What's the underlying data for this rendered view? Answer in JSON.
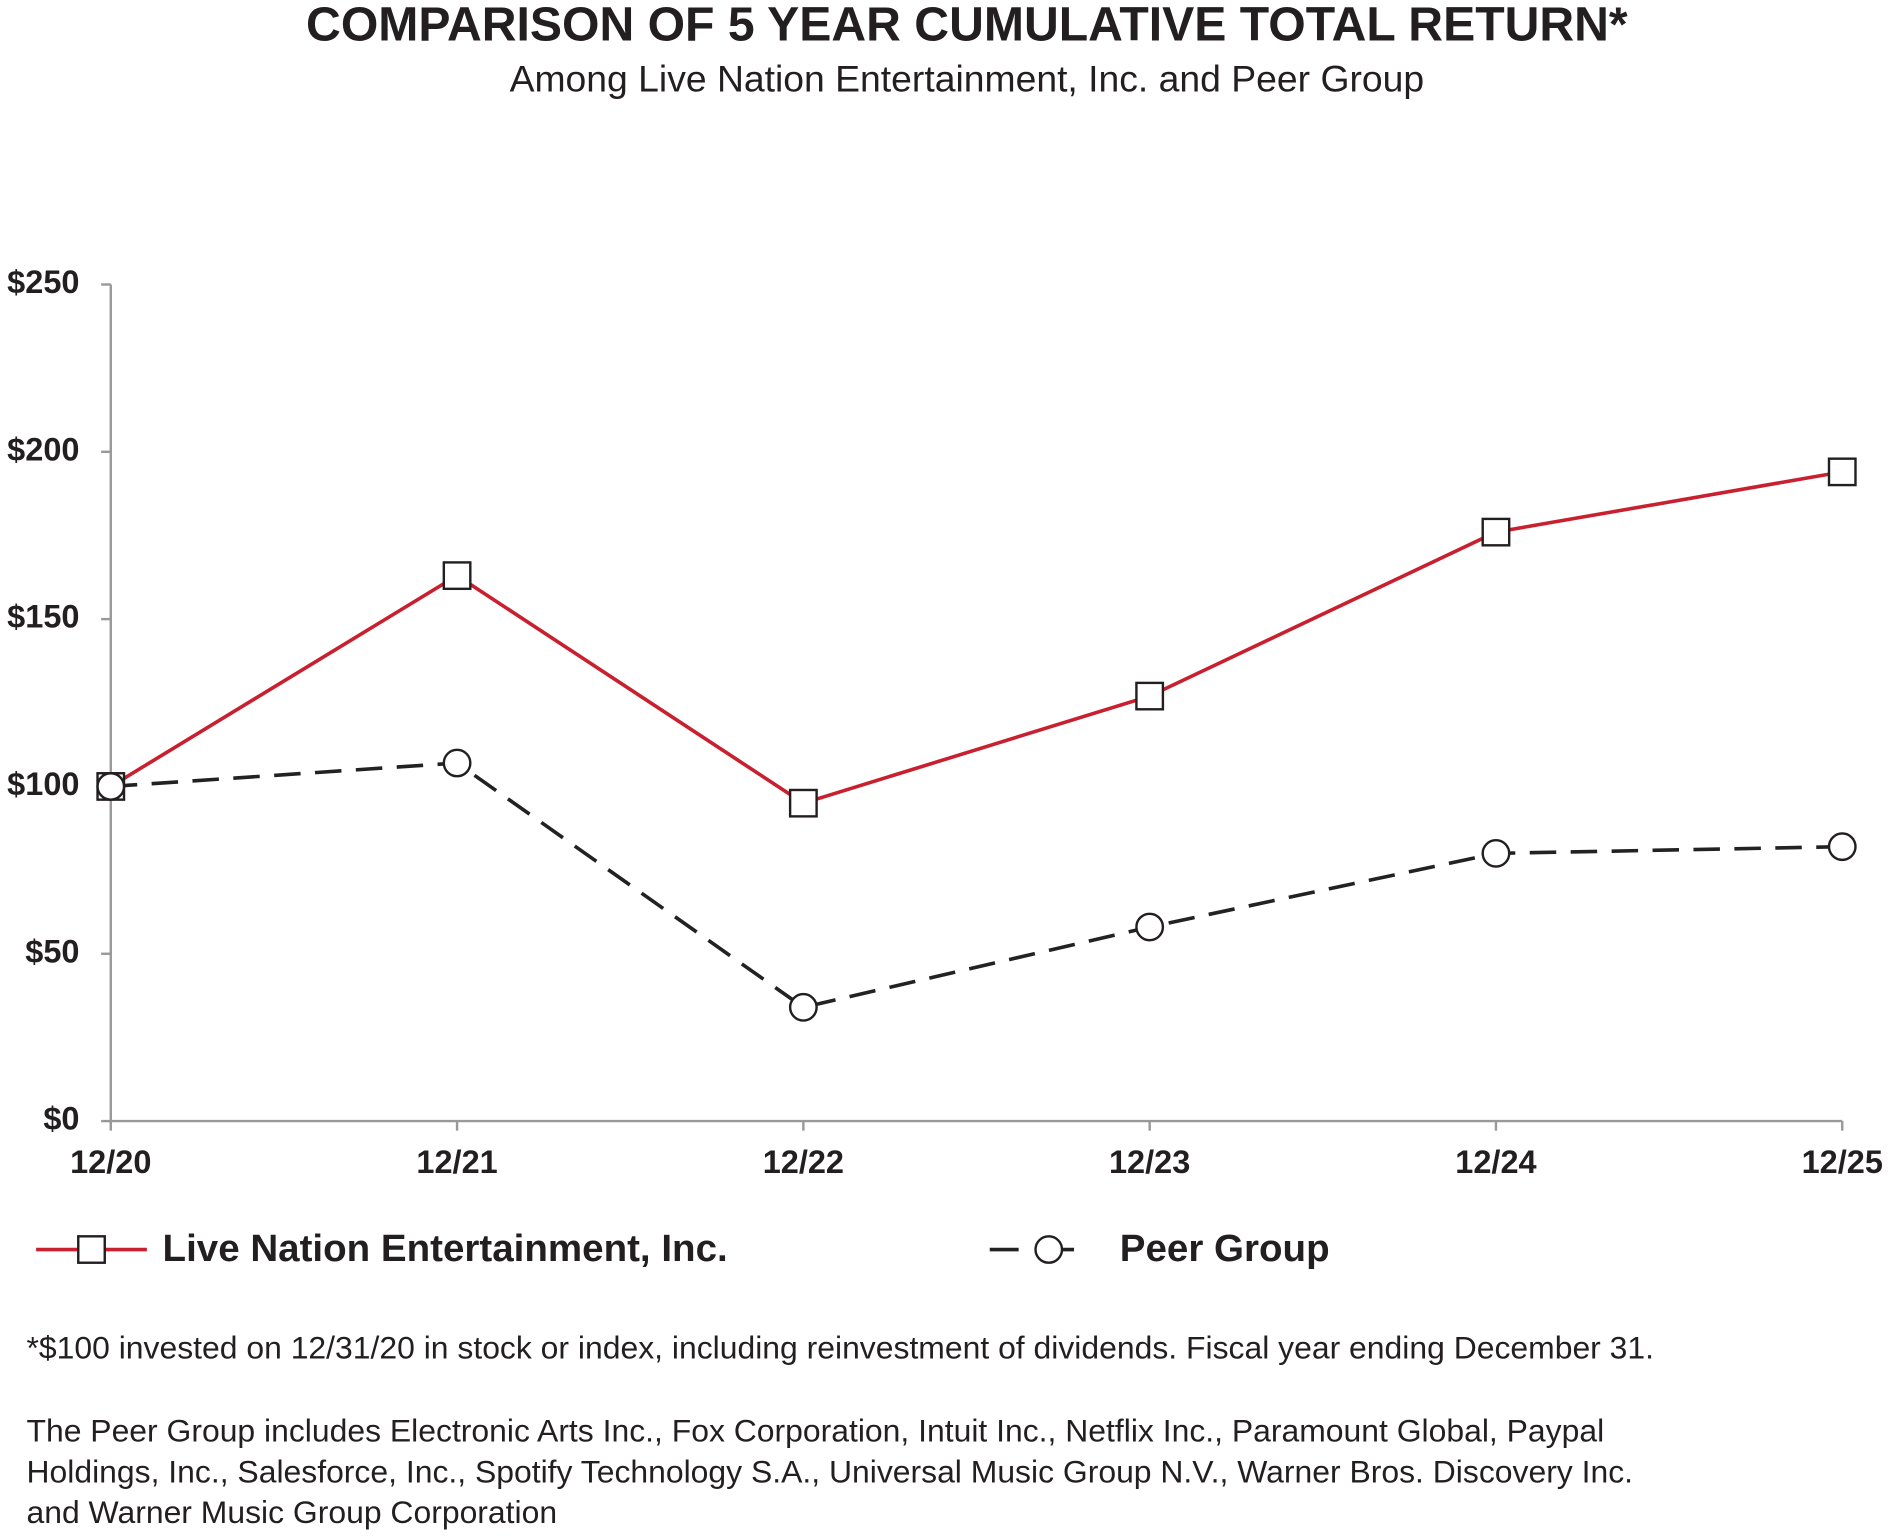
{
  "chart_data": {
    "type": "line",
    "title": "COMPARISON OF 5 YEAR CUMULATIVE TOTAL RETURN*",
    "subtitle": "Among Live Nation Entertainment, Inc. and Peer Group",
    "categories": [
      "12/20",
      "12/21",
      "12/22",
      "12/23",
      "12/24",
      "12/25"
    ],
    "series": [
      {
        "name": "Live Nation Entertainment, Inc.",
        "color": "#c8202f",
        "marker": "square",
        "dashed": false,
        "values": [
          100,
          163,
          95,
          127,
          176,
          194
        ]
      },
      {
        "name": "Peer Group",
        "color": "#222222",
        "marker": "circle",
        "dashed": true,
        "values": [
          100,
          107,
          34,
          58,
          80,
          82
        ]
      }
    ],
    "ylim": [
      0,
      250
    ],
    "yticks": [
      {
        "value": 0,
        "label": "$0"
      },
      {
        "value": 50,
        "label": "$50"
      },
      {
        "value": 100,
        "label": "$100"
      },
      {
        "value": 150,
        "label": "$150"
      },
      {
        "value": 200,
        "label": "$200"
      },
      {
        "value": 250,
        "label": "$250"
      }
    ],
    "grid": false,
    "notes": [
      "*$100 invested on 12/31/20 in stock or index, including reinvestment of dividends. Fiscal year ending December 31.",
      "The Peer Group includes Electronic Arts Inc., Fox Corporation, Intuit Inc., Netflix Inc., Paramount Global, Paypal",
      "Holdings, Inc., Salesforce, Inc., Spotify Technology S.A., Universal Music Group N.V., Warner Bros. Discovery Inc.",
      "and Warner Music Group Corporation"
    ]
  }
}
